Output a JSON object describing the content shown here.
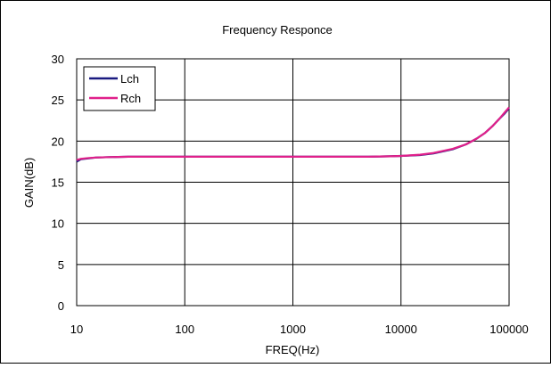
{
  "chart_data": {
    "type": "line",
    "title": "Frequency Responce",
    "xlabel": "FREQ(Hz)",
    "ylabel": "GAIN(dB)",
    "xscale": "log",
    "xlim": [
      10,
      100000
    ],
    "ylim": [
      0,
      30
    ],
    "x_ticks": [
      "10",
      "100",
      "1000",
      "10000",
      "100000"
    ],
    "y_ticks": [
      "0",
      "5",
      "10",
      "15",
      "20",
      "25",
      "30"
    ],
    "grid": true,
    "legend_position": "top-left",
    "series": [
      {
        "name": "Lch",
        "color": "#1a1a80",
        "points": [
          [
            10,
            17.5
          ],
          [
            11,
            17.8
          ],
          [
            13,
            17.9
          ],
          [
            15,
            18.0
          ],
          [
            20,
            18.05
          ],
          [
            30,
            18.1
          ],
          [
            50,
            18.1
          ],
          [
            100,
            18.1
          ],
          [
            1000,
            18.1
          ],
          [
            5000,
            18.1
          ],
          [
            8000,
            18.15
          ],
          [
            10000,
            18.2
          ],
          [
            15000,
            18.3
          ],
          [
            20000,
            18.5
          ],
          [
            30000,
            19.0
          ],
          [
            40000,
            19.6
          ],
          [
            50000,
            20.3
          ],
          [
            60000,
            21.0
          ],
          [
            70000,
            21.8
          ],
          [
            80000,
            22.6
          ],
          [
            90000,
            23.3
          ],
          [
            100000,
            24.0
          ]
        ]
      },
      {
        "name": "Rch",
        "color": "#e0208a",
        "points": [
          [
            10,
            17.7
          ],
          [
            11,
            17.85
          ],
          [
            13,
            17.95
          ],
          [
            15,
            18.0
          ],
          [
            20,
            18.05
          ],
          [
            30,
            18.1
          ],
          [
            50,
            18.1
          ],
          [
            100,
            18.1
          ],
          [
            1000,
            18.1
          ],
          [
            5000,
            18.1
          ],
          [
            8000,
            18.15
          ],
          [
            10000,
            18.2
          ],
          [
            15000,
            18.35
          ],
          [
            20000,
            18.55
          ],
          [
            30000,
            19.05
          ],
          [
            40000,
            19.6
          ],
          [
            50000,
            20.3
          ],
          [
            60000,
            21.0
          ],
          [
            70000,
            21.8
          ],
          [
            80000,
            22.6
          ],
          [
            90000,
            23.4
          ],
          [
            100000,
            24.1
          ]
        ]
      }
    ]
  }
}
